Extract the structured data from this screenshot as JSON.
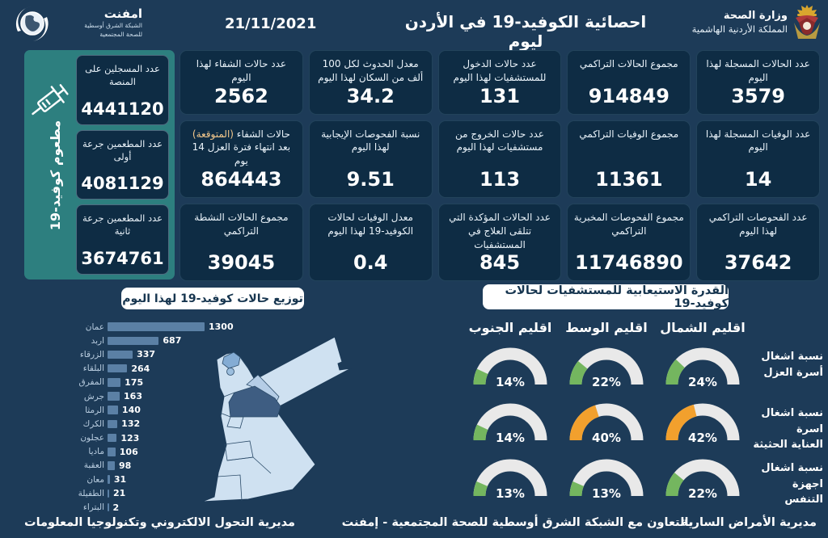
{
  "header": {
    "title": "احصائية الكوفيد-19 في الأردن ليوم",
    "date": "21/11/2021",
    "ministry": {
      "line1": "وزارة الصحة",
      "line2": "المملكة الأردنية الهاشمية"
    },
    "emphnet": {
      "name": "امفنت",
      "line1": "الشبكة الشرق أوسطية",
      "line2": "للصحة المجتمعية"
    }
  },
  "icons": {
    "emphnet_logo": "globe-swoosh-icon",
    "ministry_logo": "jordan-coat-of-arms-icon",
    "vaccination": "syringe-icon"
  },
  "vaccination": {
    "side_label": "مطعوم كوفيد-19",
    "cards": [
      {
        "label": "عدد المسجلين على المنصة",
        "value": "4441120"
      },
      {
        "label": "عدد المطعمين جرعة أولى",
        "value": "4081129"
      },
      {
        "label": "عدد المطعمين جرعة ثانية",
        "value": "3674761"
      }
    ]
  },
  "stat_cards": [
    {
      "label": "عدد الحالات المسجلة لهذا اليوم",
      "value": "3579"
    },
    {
      "label": "مجموع الحالات التراكمي",
      "value": "914849"
    },
    {
      "label": "عدد حالات الدخول للمستشفيات لهذا اليوم",
      "value": "131"
    },
    {
      "label": "معدل الحدوث لكل 100 ألف من السكان لهذا اليوم",
      "value": "34.2"
    },
    {
      "label": "عدد حالات الشفاء لهذا اليوم",
      "value": "2562"
    },
    {
      "label": "عدد الوفيات المسجلة لهذا اليوم",
      "value": "14"
    },
    {
      "label": "مجموع الوفيات التراكمي",
      "value": "11361"
    },
    {
      "label": "عدد حالات الخروج من مستشفيات لهذا اليوم",
      "value": "113"
    },
    {
      "label": "نسبة الفحوصات الإيجابية لهذا اليوم",
      "value": "9.51"
    },
    {
      "label_prefix": "حالات الشفاء",
      "label_highlight": "(المتوقعة)",
      "label_suffix": "بعد انتهاء فترة العزل 14 يوم",
      "value": "864443"
    },
    {
      "label": "عدد الفحوصات التراكمي لهذا اليوم",
      "value": "37642"
    },
    {
      "label": "مجموع الفحوصات المخبرية التراكمي",
      "value": "11746890"
    },
    {
      "label": "عدد الحالات المؤكدة التي تتلقى العلاج في المستشفيات",
      "value": "845"
    },
    {
      "label": "معدل الوفيات لحالات الكوفيد-19 لهذا اليوم",
      "value": "0.4"
    },
    {
      "label": "مجموع الحالات النشطة التراكمي",
      "value": "39045"
    }
  ],
  "chart_data": [
    {
      "type": "bar",
      "title": "توزيع حالات كوفيد-19 لهذا اليوم",
      "orientation": "horizontal",
      "categories": [
        "عمان",
        "اربد",
        "الزرقاء",
        "البلقاء",
        "المفرق",
        "جرش",
        "الرمثا",
        "الكرك",
        "عجلون",
        "ماديا",
        "العقبة",
        "معان",
        "الطفيلة",
        "البتراء"
      ],
      "values": [
        1300,
        687,
        337,
        264,
        175,
        163,
        140,
        132,
        123,
        106,
        98,
        31,
        21,
        2
      ],
      "xlim": [
        0,
        1300
      ],
      "value_labels": true
    },
    {
      "type": "gauge",
      "title": "القدرة الاستيعابية للمستشفيات لحالات كوفيد-19",
      "columns": [
        "اقليم الجنوب",
        "اقليم الوسط",
        "اقليم الشمال"
      ],
      "rows": [
        {
          "label": "نسبة اشغال\nأسرة العزل",
          "values": [
            14,
            22,
            24
          ],
          "colors": [
            "green",
            "green",
            "green"
          ]
        },
        {
          "label": "نسبة اشغال اسرة\nالعناية الحثيثة",
          "values": [
            14,
            40,
            42
          ],
          "colors": [
            "green",
            "orange",
            "orange"
          ]
        },
        {
          "label": "نسبة اشغال\nاجهزة التنفس",
          "values": [
            13,
            13,
            22
          ],
          "colors": [
            "green",
            "green",
            "green"
          ]
        }
      ],
      "unit": "%"
    }
  ],
  "footer": {
    "right": "مديرية الأمراض السارية",
    "center": "بالتعاون مع الشبكة الشرق أوسطية للصحة المجتمعية - إمفنت",
    "left": "مديرية التحول الالكتروني وتكنولوجيا المعلومات"
  },
  "colors": {
    "background": "#1d3b58",
    "card": "#0e2c44",
    "panel_teal": "#2d7f7f",
    "bar": "#5b80a5",
    "accent_green": "#74b65f",
    "accent_orange": "#f2a02d",
    "gauge_track": "#e9e9e9",
    "map_base": "#cfe1f1",
    "map_medium": "#84acd4",
    "map_zarqa": "#b5cde6",
    "map_dark": "#3e5d82"
  }
}
